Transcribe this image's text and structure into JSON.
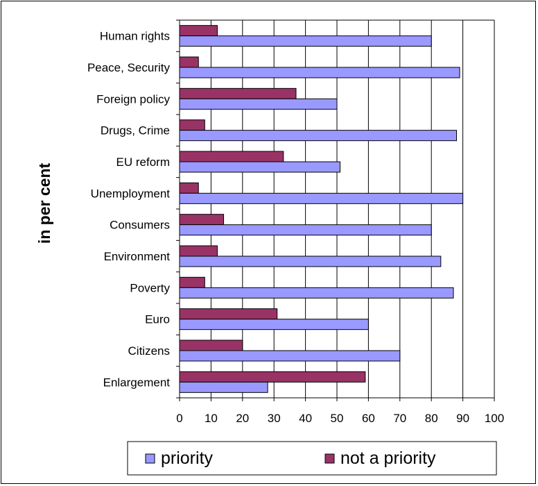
{
  "chart_data": {
    "type": "bar",
    "orientation": "horizontal",
    "title": "",
    "xlabel": "",
    "ylabel": "in per cent",
    "xlim": [
      0,
      100
    ],
    "x_ticks": [
      0,
      10,
      20,
      30,
      40,
      50,
      60,
      70,
      80,
      90,
      100
    ],
    "grid": "vertical",
    "legend_position": "bottom",
    "categories": [
      "Human rights",
      "Peace, Security",
      "Foreign policy",
      "Drugs, Crime",
      "EU reform",
      "Unemployment",
      "Consumers",
      "Environment",
      "Poverty",
      "Euro",
      "Citizens",
      "Enlargement"
    ],
    "series": [
      {
        "name": "priority",
        "color": "#9999ff",
        "values": [
          80,
          89,
          50,
          88,
          51,
          90,
          80,
          83,
          87,
          60,
          70,
          28
        ]
      },
      {
        "name": "not a priority",
        "color": "#993366",
        "values": [
          12,
          6,
          37,
          8,
          33,
          6,
          14,
          12,
          8,
          31,
          20,
          59
        ]
      }
    ]
  }
}
